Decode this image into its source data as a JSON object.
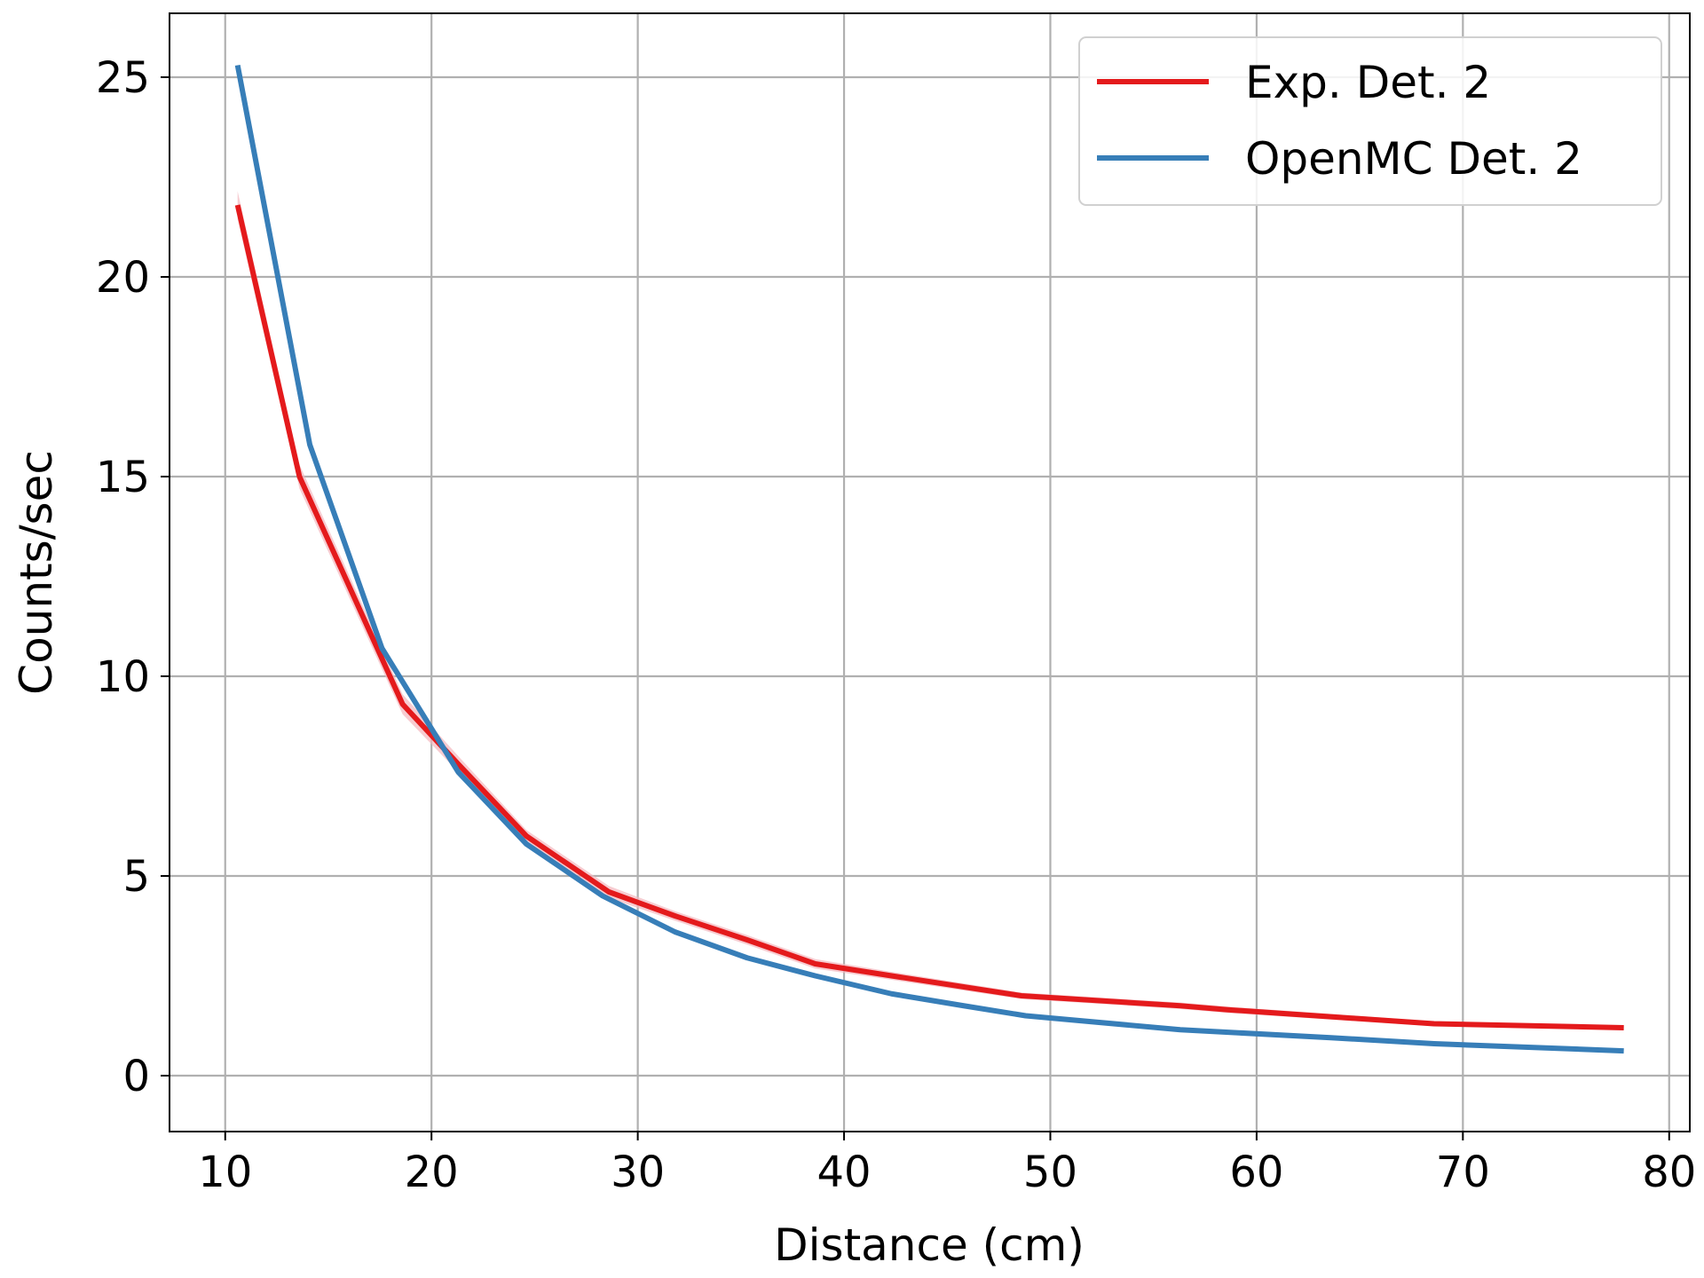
{
  "chart_data": {
    "type": "line",
    "title": "",
    "xlabel": "Distance (cm)",
    "ylabel": "Counts/sec",
    "xlim": [
      7.3,
      81.0
    ],
    "ylim": [
      -1.4,
      26.6
    ],
    "xticks": [
      10,
      20,
      30,
      40,
      50,
      60,
      70,
      80
    ],
    "yticks": [
      0,
      5,
      10,
      15,
      20,
      25
    ],
    "grid": true,
    "legend_position": "top-right",
    "series": [
      {
        "name": "Exp. Det. 2",
        "color": "#e41a1c",
        "band_color": "#f4b6bd",
        "x": [
          10.6,
          13.6,
          18.6,
          21.3,
          24.6,
          28.6,
          31.8,
          35.3,
          38.6,
          42.3,
          48.6,
          56.3,
          58.6,
          68.6,
          77.8
        ],
        "y": [
          21.8,
          15.0,
          9.3,
          7.8,
          6.0,
          4.6,
          4.0,
          3.4,
          2.8,
          2.5,
          2.0,
          1.75,
          1.65,
          1.3,
          1.2
        ],
        "error": [
          0.35,
          0.3,
          0.25,
          0.2,
          0.15,
          0.15,
          0.12,
          0.12,
          0.12,
          0.1,
          0.08,
          0.08,
          0.08,
          0.06,
          0.05
        ]
      },
      {
        "name": "OpenMC Det. 2",
        "color": "#377eb8",
        "x": [
          10.6,
          14.1,
          17.6,
          21.3,
          24.6,
          28.3,
          31.8,
          35.3,
          38.6,
          42.3,
          45.8,
          48.8,
          56.3,
          63.6,
          68.6,
          77.8
        ],
        "y": [
          25.3,
          15.8,
          10.7,
          7.6,
          5.8,
          4.5,
          3.6,
          2.95,
          2.5,
          2.05,
          1.75,
          1.5,
          1.15,
          0.95,
          0.8,
          0.62
        ]
      }
    ]
  }
}
